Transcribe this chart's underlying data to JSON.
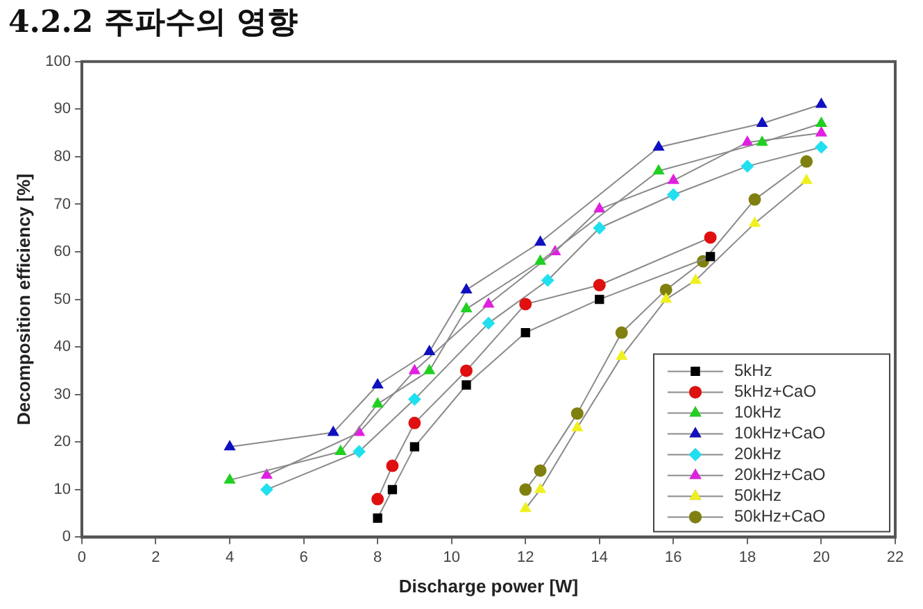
{
  "chart_data": {
    "type": "line",
    "title": "4.2.2 주파수의 영향",
    "xlabel": "Discharge power [W]",
    "ylabel": "Decomposition efficiency [%]",
    "xlim": [
      0,
      22
    ],
    "xticks": [
      0,
      2,
      4,
      6,
      8,
      10,
      12,
      14,
      16,
      18,
      20,
      22
    ],
    "ylim": [
      0,
      100
    ],
    "yticks": [
      0,
      10,
      20,
      30,
      40,
      50,
      60,
      70,
      80,
      90,
      100
    ],
    "grid": false,
    "legend": "bottom right",
    "line_style": "solid",
    "series": [
      {
        "name": "5kHz",
        "color": "#000000",
        "marker": "square",
        "x": [
          8,
          8.4,
          9,
          10.4,
          12,
          14,
          17
        ],
        "values": [
          4,
          10,
          19,
          32,
          43,
          50,
          59
        ]
      },
      {
        "name": "5kHz+CaO",
        "color": "#e01010",
        "marker": "circle",
        "x": [
          8,
          8.4,
          9,
          10.4,
          12,
          14,
          17
        ],
        "values": [
          8,
          15,
          24,
          35,
          49,
          53,
          63
        ]
      },
      {
        "name": "10kHz",
        "color": "#20d020",
        "marker": "triangle",
        "x": [
          4,
          7,
          8,
          9.4,
          10.4,
          12.4,
          15.6,
          18.4,
          20
        ],
        "values": [
          12,
          18,
          28,
          35,
          48,
          58,
          77,
          83,
          87
        ]
      },
      {
        "name": "10kHz+CaO",
        "color": "#1010c0",
        "marker": "triangle",
        "x": [
          4,
          6.8,
          8,
          9.4,
          10.4,
          12.4,
          15.6,
          18.4,
          20
        ],
        "values": [
          19,
          22,
          32,
          39,
          52,
          62,
          82,
          87,
          91
        ]
      },
      {
        "name": "20kHz",
        "color": "#20e0f0",
        "marker": "diamond",
        "x": [
          5,
          7.5,
          9,
          11,
          12.6,
          14,
          16,
          18,
          20
        ],
        "values": [
          10,
          18,
          29,
          45,
          54,
          65,
          72,
          78,
          82
        ]
      },
      {
        "name": "20kHz+CaO",
        "color": "#e020e0",
        "marker": "triangle",
        "x": [
          5,
          7.5,
          9,
          11,
          12.8,
          14,
          16,
          18,
          20
        ],
        "values": [
          13,
          22,
          35,
          49,
          60,
          69,
          75,
          83,
          85
        ]
      },
      {
        "name": "50kHz",
        "color": "#f0f020",
        "marker": "triangle",
        "x": [
          12,
          12.4,
          13.4,
          14.6,
          15.8,
          16.6,
          18.2,
          19.6
        ],
        "values": [
          6,
          10,
          23,
          38,
          50,
          54,
          66,
          75
        ]
      },
      {
        "name": "50kHz+CaO",
        "color": "#808010",
        "marker": "circle",
        "x": [
          12,
          12.4,
          13.4,
          14.6,
          15.8,
          16.8,
          18.2,
          19.6
        ],
        "values": [
          10,
          14,
          26,
          43,
          52,
          58,
          71,
          79
        ]
      }
    ]
  }
}
